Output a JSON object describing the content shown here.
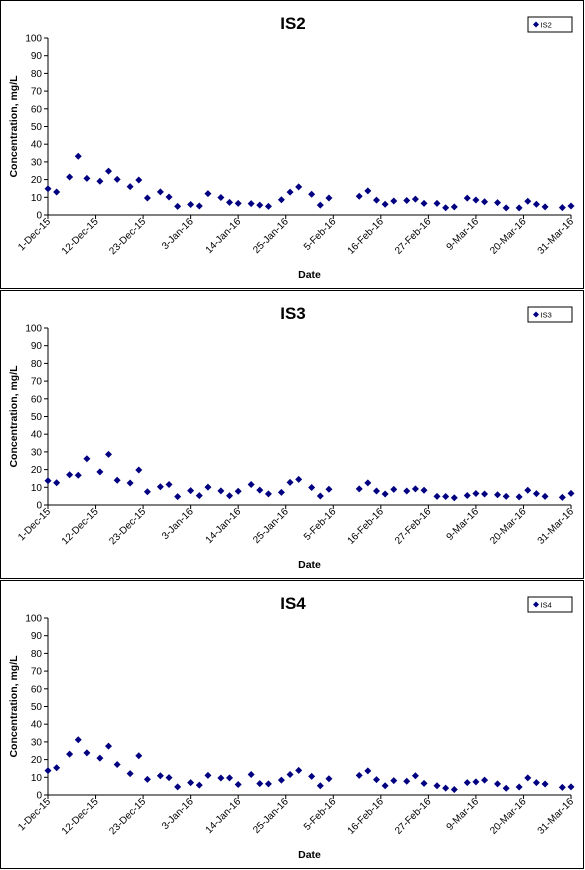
{
  "chart_data": [
    {
      "type": "scatter",
      "title": "IS2",
      "xlabel": "Date",
      "ylabel": "Concentration, mg/L",
      "ylim": [
        0,
        100
      ],
      "yticks": [
        0,
        10,
        20,
        30,
        40,
        50,
        60,
        70,
        80,
        90,
        100
      ],
      "xlim": [
        "2015-12-01",
        "2016-03-31"
      ],
      "xtick_labels": [
        "1-Dec-15",
        "12-Dec-15",
        "23-Dec-15",
        "3-Jan-16",
        "14-Jan-16",
        "25-Jan-16",
        "5-Feb-16",
        "16-Feb-16",
        "27-Feb-16",
        "9-Mar-16",
        "20-Mar-16",
        "31-Mar-16"
      ],
      "legend_position": "top-right",
      "marker": "diamond",
      "color": "#000080",
      "series": [
        {
          "name": "IS2",
          "points": [
            [
              "2015-12-01",
              14.8
            ],
            [
              "2015-12-03",
              13.0
            ],
            [
              "2015-12-06",
              21.5
            ],
            [
              "2015-12-08",
              33.2
            ],
            [
              "2015-12-10",
              20.7
            ],
            [
              "2015-12-13",
              19.1
            ],
            [
              "2015-12-15",
              24.8
            ],
            [
              "2015-12-17",
              20.1
            ],
            [
              "2015-12-20",
              16.0
            ],
            [
              "2015-12-22",
              19.8
            ],
            [
              "2015-12-24",
              9.6
            ],
            [
              "2015-12-27",
              13.1
            ],
            [
              "2015-12-29",
              10.2
            ],
            [
              "2015-12-31",
              4.9
            ],
            [
              "2016-01-03",
              5.9
            ],
            [
              "2016-01-05",
              5.1
            ],
            [
              "2016-01-07",
              12.1
            ],
            [
              "2016-01-10",
              9.9
            ],
            [
              "2016-01-12",
              7.1
            ],
            [
              "2016-01-14",
              6.6
            ],
            [
              "2016-01-17",
              6.4
            ],
            [
              "2016-01-19",
              5.6
            ],
            [
              "2016-01-21",
              4.9
            ],
            [
              "2016-01-24",
              8.6
            ],
            [
              "2016-01-26",
              12.9
            ],
            [
              "2016-01-28",
              15.9
            ],
            [
              "2016-01-31",
              11.7
            ],
            [
              "2016-02-02",
              5.6
            ],
            [
              "2016-02-04",
              9.6
            ],
            [
              "2016-02-11",
              10.6
            ],
            [
              "2016-02-13",
              13.6
            ],
            [
              "2016-02-15",
              8.4
            ],
            [
              "2016-02-17",
              6.1
            ],
            [
              "2016-02-19",
              7.9
            ],
            [
              "2016-02-22",
              8.2
            ],
            [
              "2016-02-24",
              9.0
            ],
            [
              "2016-02-26",
              6.6
            ],
            [
              "2016-02-29",
              6.6
            ],
            [
              "2016-03-02",
              4.1
            ],
            [
              "2016-03-04",
              4.6
            ],
            [
              "2016-03-07",
              9.5
            ],
            [
              "2016-03-09",
              8.5
            ],
            [
              "2016-03-11",
              7.5
            ],
            [
              "2016-03-14",
              7.0
            ],
            [
              "2016-03-16",
              4.0
            ],
            [
              "2016-03-19",
              4.0
            ],
            [
              "2016-03-21",
              7.8
            ],
            [
              "2016-03-23",
              6.1
            ],
            [
              "2016-03-25",
              4.6
            ],
            [
              "2016-03-29",
              4.2
            ],
            [
              "2016-03-31",
              5.1
            ]
          ]
        }
      ]
    },
    {
      "type": "scatter",
      "title": "IS3",
      "xlabel": "Date",
      "ylabel": "Concentration, mg/L",
      "ylim": [
        0,
        100
      ],
      "yticks": [
        0,
        10,
        20,
        30,
        40,
        50,
        60,
        70,
        80,
        90,
        100
      ],
      "xlim": [
        "2015-12-01",
        "2016-03-31"
      ],
      "xtick_labels": [
        "1-Dec-15",
        "12-Dec-15",
        "23-Dec-15",
        "3-Jan-16",
        "14-Jan-16",
        "25-Jan-16",
        "5-Feb-16",
        "16-Feb-16",
        "27-Feb-16",
        "9-Mar-16",
        "20-Mar-16",
        "31-Mar-16"
      ],
      "legend_position": "top-right",
      "marker": "diamond",
      "color": "#000080",
      "series": [
        {
          "name": "IS3",
          "points": [
            [
              "2015-12-01",
              13.7
            ],
            [
              "2015-12-03",
              12.6
            ],
            [
              "2015-12-06",
              17.1
            ],
            [
              "2015-12-08",
              16.8
            ],
            [
              "2015-12-10",
              26.1
            ],
            [
              "2015-12-13",
              18.7
            ],
            [
              "2015-12-15",
              28.6
            ],
            [
              "2015-12-17",
              14.0
            ],
            [
              "2015-12-20",
              12.4
            ],
            [
              "2015-12-22",
              19.8
            ],
            [
              "2015-12-24",
              7.5
            ],
            [
              "2015-12-27",
              10.3
            ],
            [
              "2015-12-29",
              11.6
            ],
            [
              "2015-12-31",
              4.7
            ],
            [
              "2016-01-03",
              8.1
            ],
            [
              "2016-01-05",
              5.3
            ],
            [
              "2016-01-07",
              10.1
            ],
            [
              "2016-01-10",
              8.0
            ],
            [
              "2016-01-12",
              5.2
            ],
            [
              "2016-01-14",
              7.8
            ],
            [
              "2016-01-17",
              11.6
            ],
            [
              "2016-01-19",
              8.4
            ],
            [
              "2016-01-21",
              6.3
            ],
            [
              "2016-01-24",
              7.1
            ],
            [
              "2016-01-26",
              12.8
            ],
            [
              "2016-01-28",
              14.5
            ],
            [
              "2016-01-31",
              9.9
            ],
            [
              "2016-02-02",
              5.1
            ],
            [
              "2016-02-04",
              8.9
            ],
            [
              "2016-02-11",
              9.1
            ],
            [
              "2016-02-13",
              12.5
            ],
            [
              "2016-02-15",
              7.9
            ],
            [
              "2016-02-17",
              6.2
            ],
            [
              "2016-02-19",
              8.8
            ],
            [
              "2016-02-22",
              7.9
            ],
            [
              "2016-02-24",
              9.1
            ],
            [
              "2016-02-26",
              8.3
            ],
            [
              "2016-02-29",
              4.9
            ],
            [
              "2016-03-02",
              4.8
            ],
            [
              "2016-03-04",
              4.1
            ],
            [
              "2016-03-07",
              5.4
            ],
            [
              "2016-03-09",
              6.5
            ],
            [
              "2016-03-11",
              6.2
            ],
            [
              "2016-03-14",
              5.8
            ],
            [
              "2016-03-16",
              4.9
            ],
            [
              "2016-03-19",
              4.6
            ],
            [
              "2016-03-21",
              8.3
            ],
            [
              "2016-03-23",
              6.4
            ],
            [
              "2016-03-25",
              4.9
            ],
            [
              "2016-03-29",
              4.3
            ],
            [
              "2016-03-31",
              6.6
            ]
          ]
        }
      ]
    },
    {
      "type": "scatter",
      "title": "IS4",
      "xlabel": "Date",
      "ylabel": "Concentration, mg/L",
      "ylim": [
        0,
        100
      ],
      "yticks": [
        0,
        10,
        20,
        30,
        40,
        50,
        60,
        70,
        80,
        90,
        100
      ],
      "xlim": [
        "2015-12-01",
        "2016-03-31"
      ],
      "xtick_labels": [
        "1-Dec-15",
        "12-Dec-15",
        "23-Dec-15",
        "3-Jan-16",
        "14-Jan-16",
        "25-Jan-16",
        "5-Feb-16",
        "16-Feb-16",
        "27-Feb-16",
        "9-Mar-16",
        "20-Mar-16",
        "31-Mar-16"
      ],
      "legend_position": "top-right",
      "marker": "diamond",
      "color": "#000080",
      "series": [
        {
          "name": "IS4",
          "points": [
            [
              "2015-12-01",
              13.8
            ],
            [
              "2015-12-03",
              15.4
            ],
            [
              "2015-12-06",
              23.1
            ],
            [
              "2015-12-08",
              31.2
            ],
            [
              "2015-12-10",
              23.8
            ],
            [
              "2015-12-13",
              20.8
            ],
            [
              "2015-12-15",
              27.6
            ],
            [
              "2015-12-17",
              17.2
            ],
            [
              "2015-12-20",
              12.1
            ],
            [
              "2015-12-22",
              22.2
            ],
            [
              "2015-12-24",
              8.8
            ],
            [
              "2015-12-27",
              10.9
            ],
            [
              "2015-12-29",
              9.8
            ],
            [
              "2015-12-31",
              4.6
            ],
            [
              "2016-01-03",
              7.0
            ],
            [
              "2016-01-05",
              5.6
            ],
            [
              "2016-01-07",
              11.1
            ],
            [
              "2016-01-10",
              9.6
            ],
            [
              "2016-01-12",
              9.7
            ],
            [
              "2016-01-14",
              5.9
            ],
            [
              "2016-01-17",
              11.6
            ],
            [
              "2016-01-19",
              6.4
            ],
            [
              "2016-01-21",
              6.3
            ],
            [
              "2016-01-24",
              8.4
            ],
            [
              "2016-01-26",
              11.6
            ],
            [
              "2016-01-28",
              13.9
            ],
            [
              "2016-01-31",
              10.5
            ],
            [
              "2016-02-02",
              5.2
            ],
            [
              "2016-02-04",
              9.2
            ],
            [
              "2016-02-11",
              11.1
            ],
            [
              "2016-02-13",
              13.6
            ],
            [
              "2016-02-15",
              8.7
            ],
            [
              "2016-02-17",
              5.2
            ],
            [
              "2016-02-19",
              8.1
            ],
            [
              "2016-02-22",
              7.8
            ],
            [
              "2016-02-24",
              10.9
            ],
            [
              "2016-02-26",
              6.6
            ],
            [
              "2016-02-29",
              5.2
            ],
            [
              "2016-03-02",
              3.9
            ],
            [
              "2016-03-04",
              3.1
            ],
            [
              "2016-03-07",
              7.0
            ],
            [
              "2016-03-09",
              7.4
            ],
            [
              "2016-03-11",
              8.4
            ],
            [
              "2016-03-14",
              6.3
            ],
            [
              "2016-03-16",
              3.8
            ],
            [
              "2016-03-19",
              4.5
            ],
            [
              "2016-03-21",
              9.7
            ],
            [
              "2016-03-23",
              7.0
            ],
            [
              "2016-03-25",
              6.2
            ],
            [
              "2016-03-29",
              4.3
            ],
            [
              "2016-03-31",
              4.6
            ]
          ]
        }
      ]
    }
  ]
}
